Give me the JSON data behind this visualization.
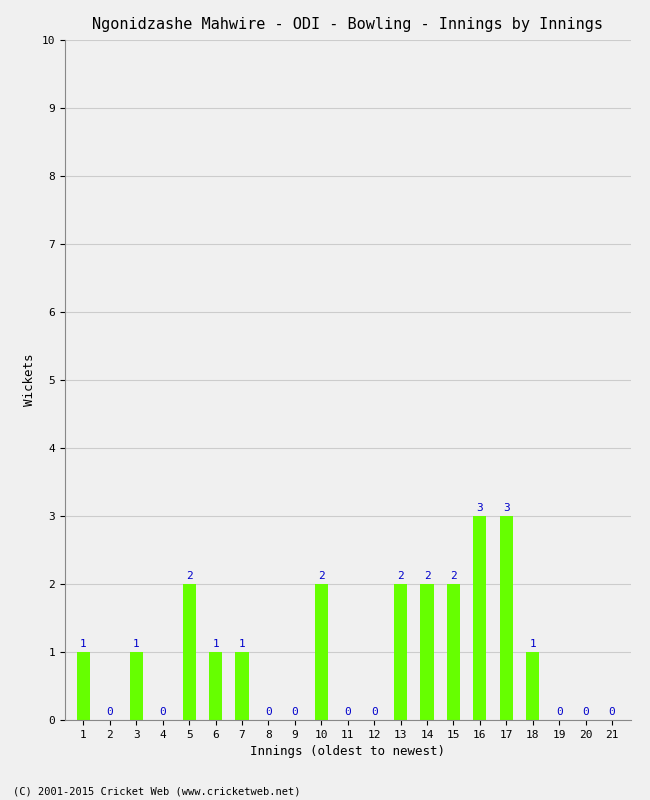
{
  "title": "Ngonidzashe Mahwire - ODI - Bowling - Innings by Innings",
  "xlabel": "Innings (oldest to newest)",
  "ylabel": "Wickets",
  "innings": [
    1,
    2,
    3,
    4,
    5,
    6,
    7,
    8,
    9,
    10,
    11,
    12,
    13,
    14,
    15,
    16,
    17,
    18,
    19,
    20,
    21
  ],
  "wickets": [
    1,
    0,
    1,
    0,
    2,
    1,
    1,
    0,
    0,
    2,
    0,
    0,
    2,
    2,
    2,
    3,
    3,
    1,
    0,
    0,
    0
  ],
  "bar_color": "#66ff00",
  "label_color": "#0000cc",
  "ylim": [
    0,
    10
  ],
  "yticks": [
    0,
    1,
    2,
    3,
    4,
    5,
    6,
    7,
    8,
    9,
    10
  ],
  "grid_color": "#cccccc",
  "bg_color": "#f0f0f0",
  "title_fontsize": 11,
  "axis_fontsize": 9,
  "label_fontsize": 8,
  "tick_fontsize": 8,
  "footer": "(C) 2001-2015 Cricket Web (www.cricketweb.net)"
}
